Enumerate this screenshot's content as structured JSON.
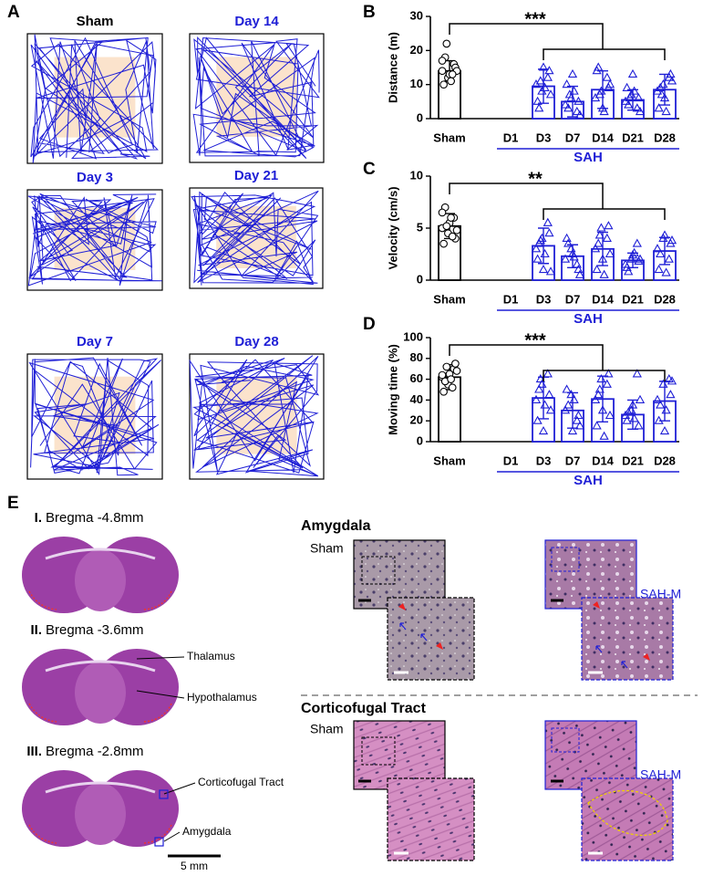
{
  "panel_labels": [
    "A",
    "B",
    "C",
    "D",
    "E"
  ],
  "panel_a": {
    "titles": [
      "Sham",
      "Day 14",
      "Day 3",
      "Day 21",
      "Day 7",
      "Day 28"
    ]
  },
  "chart_data": [
    {
      "type": "bar",
      "y_label": "Distance (m)",
      "significance": "***",
      "group_label": "SAH",
      "categories": [
        "Sham",
        "D1",
        "D3",
        "D7",
        "D14",
        "D21",
        "D28"
      ],
      "values": [
        14,
        null,
        9.5,
        5,
        8.5,
        5.5,
        8.5
      ],
      "errors": [
        3,
        null,
        5,
        4.5,
        5.5,
        3,
        4.5
      ],
      "points": [
        [
          14,
          12,
          16,
          10,
          13,
          15,
          18,
          11,
          14,
          22,
          13,
          17
        ],
        [],
        [
          10,
          8,
          12,
          5,
          15,
          14,
          3,
          9,
          7,
          11
        ],
        [
          4,
          6,
          2,
          10,
          13,
          5,
          3,
          8,
          1,
          7
        ],
        [
          6,
          8,
          12,
          14,
          3,
          9,
          15,
          2,
          10,
          7
        ],
        [
          5,
          7,
          3,
          9,
          13,
          6,
          4,
          8,
          2,
          6
        ],
        [
          8,
          10,
          12,
          3,
          6,
          13,
          9,
          2,
          11,
          7
        ]
      ],
      "colors": [
        "#000000",
        "#1f1fd6",
        "#1f1fd6",
        "#1f1fd6",
        "#1f1fd6",
        "#1f1fd6",
        "#1f1fd6"
      ],
      "ylim": [
        0,
        30
      ],
      "yticks": [
        0,
        10,
        20,
        30
      ]
    },
    {
      "type": "bar",
      "y_label": "Velocity (cm/s)",
      "significance": "**",
      "group_label": "SAH",
      "categories": [
        "Sham",
        "D1",
        "D3",
        "D7",
        "D14",
        "D21",
        "D28"
      ],
      "values": [
        5.2,
        null,
        3.3,
        2.3,
        3.0,
        1.9,
        2.8
      ],
      "errors": [
        1.2,
        null,
        1.7,
        1.1,
        1.6,
        0.7,
        1.3
      ],
      "points": [
        [
          5,
          4.5,
          6,
          3.5,
          5.5,
          4,
          7,
          6,
          4.8,
          5.2,
          4.2,
          6.5
        ],
        [],
        [
          3,
          4,
          5.5,
          2,
          1,
          4.5,
          3.5,
          2.5,
          0.8,
          3.8
        ],
        [
          2,
          3,
          1.5,
          4,
          2.5,
          1,
          3.5,
          2.2,
          0.5
        ],
        [
          3,
          5,
          4,
          1,
          2,
          5.2,
          3.5,
          0.5,
          2.5,
          4.3
        ],
        [
          1.5,
          2,
          3.5,
          1.2,
          2.4,
          1.8,
          0.8,
          2.6,
          2
        ],
        [
          3,
          4,
          2,
          1,
          4.3,
          3.5,
          2.5,
          0.7,
          3.8
        ]
      ],
      "colors": [
        "#000000",
        "#1f1fd6",
        "#1f1fd6",
        "#1f1fd6",
        "#1f1fd6",
        "#1f1fd6",
        "#1f1fd6"
      ],
      "ylim": [
        0,
        10
      ],
      "yticks": [
        0,
        5,
        10
      ]
    },
    {
      "type": "bar",
      "y_label": "Moving time (%)",
      "significance": "***",
      "group_label": "SAH",
      "categories": [
        "Sham",
        "D1",
        "D3",
        "D7",
        "D14",
        "D21",
        "D28"
      ],
      "values": [
        62,
        null,
        42,
        30,
        41,
        26,
        39
      ],
      "errors": [
        12,
        null,
        20,
        17,
        22,
        14,
        19
      ],
      "points": [
        [
          62,
          55,
          70,
          48,
          65,
          75,
          58,
          60,
          68,
          72,
          52,
          64
        ],
        [],
        [
          40,
          55,
          65,
          20,
          10,
          45,
          50,
          35,
          30,
          60
        ],
        [
          30,
          45,
          20,
          50,
          10,
          25,
          35,
          40,
          15
        ],
        [
          40,
          60,
          55,
          15,
          30,
          65,
          45,
          5,
          25,
          50
        ],
        [
          25,
          30,
          65,
          20,
          35,
          15,
          28,
          22,
          40
        ],
        [
          40,
          55,
          60,
          20,
          10,
          45,
          35,
          30,
          58
        ]
      ],
      "colors": [
        "#000000",
        "#1f1fd6",
        "#1f1fd6",
        "#1f1fd6",
        "#1f1fd6",
        "#1f1fd6",
        "#1f1fd6"
      ],
      "ylim": [
        0,
        100
      ],
      "yticks": [
        0,
        20,
        40,
        60,
        80,
        100
      ]
    }
  ],
  "panel_e": {
    "sections": [
      {
        "numeral": "I.",
        "label": "Bregma -4.8mm"
      },
      {
        "numeral": "II.",
        "label": "Bregma -3.6mm"
      },
      {
        "numeral": "III.",
        "label": "Bregma -2.8mm"
      }
    ],
    "annotations": [
      "Thalamus",
      "Hypothalamus",
      "Corticofugal Tract",
      "Amygdala"
    ],
    "scale_bar": "5 mm",
    "regions": [
      {
        "title": "Amygdala",
        "control": "Sham",
        "treated": "SAH-M"
      },
      {
        "title": "Corticofugal Tract",
        "control": "Sham",
        "treated": "SAH-M"
      }
    ]
  }
}
